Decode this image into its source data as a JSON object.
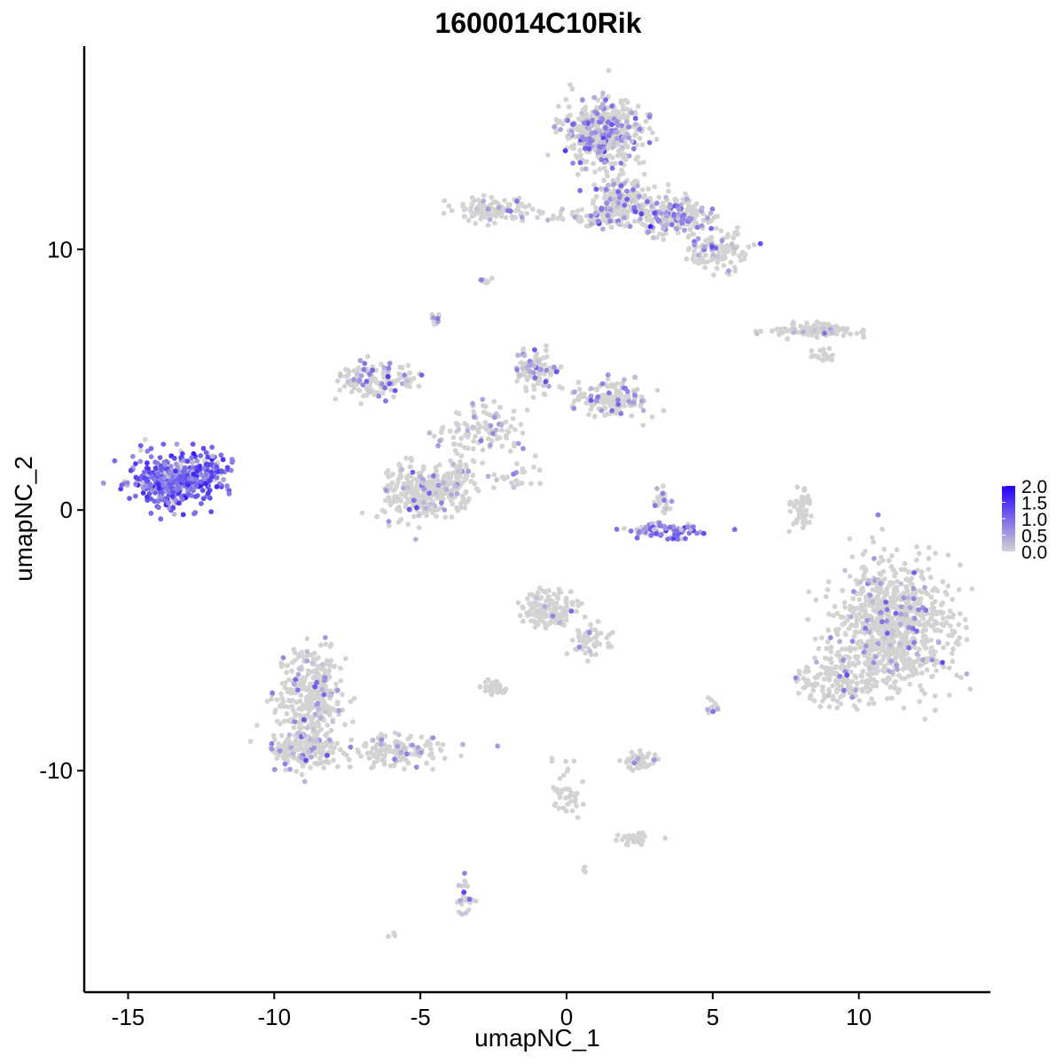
{
  "chart_data": {
    "type": "scatter",
    "title": "1600014C10Rik",
    "xlabel": "umapNC_1",
    "ylabel": "umapNC_2",
    "xlim": [
      -16.5,
      14.5
    ],
    "ylim": [
      -18.5,
      17.8
    ],
    "x_ticks": [
      -15,
      -10,
      -5,
      0,
      5,
      10
    ],
    "x_tick_labels": [
      "-15",
      "-10",
      "-5",
      "0",
      "5",
      "10"
    ],
    "y_ticks": [
      -10,
      0,
      10
    ],
    "y_tick_labels": [
      "-10",
      "0",
      "10"
    ],
    "grid": false,
    "legend_position": "right",
    "color_scale": {
      "low_color": "#d3d3d3",
      "high_color": "#2200ff",
      "min": 0.0,
      "max": 2.0,
      "breaks": [
        0.0,
        0.5,
        1.0,
        1.5,
        2.0
      ],
      "break_labels": [
        "0.0",
        "0.5",
        "1.0",
        "1.5",
        "2.0"
      ]
    },
    "clusters": [
      {
        "center": [
          -13.5,
          1.1
        ],
        "spread": [
          1.2,
          0.8
        ],
        "n": 420,
        "expr_frac": 0.9,
        "expr_mean": 1.0
      },
      {
        "center": [
          -12.1,
          1.6
        ],
        "spread": [
          0.6,
          0.6
        ],
        "n": 60,
        "expr_frac": 0.85,
        "expr_mean": 1.0
      },
      {
        "center": [
          1.2,
          14.5
        ],
        "spread": [
          1.1,
          1.1
        ],
        "n": 480,
        "expr_frac": 0.28,
        "expr_mean": 0.6
      },
      {
        "center": [
          1.9,
          11.8
        ],
        "spread": [
          0.8,
          0.8
        ],
        "n": 200,
        "expr_frac": 0.22,
        "expr_mean": 0.6
      },
      {
        "center": [
          3.7,
          11.3
        ],
        "spread": [
          0.9,
          0.6
        ],
        "n": 200,
        "expr_frac": 0.3,
        "expr_mean": 0.7
      },
      {
        "center": [
          5.2,
          10.0
        ],
        "spread": [
          0.8,
          0.6
        ],
        "n": 120,
        "expr_frac": 0.2,
        "expr_mean": 0.6
      },
      {
        "center": [
          -2.5,
          11.5
        ],
        "spread": [
          1.2,
          0.4
        ],
        "n": 110,
        "expr_frac": 0.1,
        "expr_mean": 0.5
      },
      {
        "center": [
          0.8,
          11.2
        ],
        "spread": [
          0.9,
          0.3
        ],
        "n": 60,
        "expr_frac": 0.08,
        "expr_mean": 0.4
      },
      {
        "center": [
          -2.8,
          8.8
        ],
        "spread": [
          0.15,
          0.12
        ],
        "n": 10,
        "expr_frac": 0.4,
        "expr_mean": 0.5
      },
      {
        "center": [
          -4.5,
          7.3
        ],
        "spread": [
          0.15,
          0.3
        ],
        "n": 12,
        "expr_frac": 0.3,
        "expr_mean": 0.5
      },
      {
        "center": [
          8.5,
          6.9
        ],
        "spread": [
          1.2,
          0.2
        ],
        "n": 140,
        "expr_frac": 0.06,
        "expr_mean": 0.4
      },
      {
        "center": [
          8.8,
          6.0
        ],
        "spread": [
          0.4,
          0.3
        ],
        "n": 20,
        "expr_frac": 0.0,
        "expr_mean": 0.3
      },
      {
        "center": [
          -6.5,
          5.0
        ],
        "spread": [
          1.0,
          0.6
        ],
        "n": 140,
        "expr_frac": 0.2,
        "expr_mean": 0.6
      },
      {
        "center": [
          -1.0,
          5.4
        ],
        "spread": [
          0.6,
          0.7
        ],
        "n": 100,
        "expr_frac": 0.25,
        "expr_mean": 0.6
      },
      {
        "center": [
          1.5,
          4.3
        ],
        "spread": [
          1.0,
          0.6
        ],
        "n": 160,
        "expr_frac": 0.15,
        "expr_mean": 0.5
      },
      {
        "center": [
          -3.0,
          3.0
        ],
        "spread": [
          1.2,
          0.9
        ],
        "n": 110,
        "expr_frac": 0.15,
        "expr_mean": 0.5
      },
      {
        "center": [
          -5.2,
          0.7
        ],
        "spread": [
          0.9,
          0.9
        ],
        "n": 220,
        "expr_frac": 0.12,
        "expr_mean": 0.5
      },
      {
        "center": [
          -3.9,
          1.0
        ],
        "spread": [
          0.6,
          0.8
        ],
        "n": 120,
        "expr_frac": 0.12,
        "expr_mean": 0.5
      },
      {
        "center": [
          -1.8,
          1.2
        ],
        "spread": [
          0.6,
          0.5
        ],
        "n": 25,
        "expr_frac": 0.2,
        "expr_mean": 0.5
      },
      {
        "center": [
          3.4,
          -0.8
        ],
        "spread": [
          1.1,
          0.25
        ],
        "n": 70,
        "expr_frac": 0.8,
        "expr_mean": 0.9
      },
      {
        "center": [
          3.3,
          0.3
        ],
        "spread": [
          0.3,
          0.5
        ],
        "n": 25,
        "expr_frac": 0.2,
        "expr_mean": 0.5
      },
      {
        "center": [
          8.0,
          0.0
        ],
        "spread": [
          0.3,
          0.8
        ],
        "n": 50,
        "expr_frac": 0.0,
        "expr_mean": 0.3
      },
      {
        "center": [
          11.2,
          -4.5
        ],
        "spread": [
          1.6,
          1.9
        ],
        "n": 900,
        "expr_frac": 0.08,
        "expr_mean": 0.6
      },
      {
        "center": [
          9.2,
          -6.5
        ],
        "spread": [
          1.0,
          0.8
        ],
        "n": 150,
        "expr_frac": 0.05,
        "expr_mean": 0.5
      },
      {
        "center": [
          -0.6,
          -3.8
        ],
        "spread": [
          0.7,
          0.6
        ],
        "n": 150,
        "expr_frac": 0.06,
        "expr_mean": 0.4
      },
      {
        "center": [
          0.8,
          -5.0
        ],
        "spread": [
          0.6,
          0.5
        ],
        "n": 50,
        "expr_frac": 0.05,
        "expr_mean": 0.4
      },
      {
        "center": [
          -2.5,
          -6.8
        ],
        "spread": [
          0.4,
          0.2
        ],
        "n": 40,
        "expr_frac": 0.0,
        "expr_mean": 0.3
      },
      {
        "center": [
          -8.8,
          -7.0
        ],
        "spread": [
          0.9,
          1.4
        ],
        "n": 330,
        "expr_frac": 0.1,
        "expr_mean": 0.5
      },
      {
        "center": [
          -9.0,
          -9.2
        ],
        "spread": [
          1.0,
          0.6
        ],
        "n": 200,
        "expr_frac": 0.12,
        "expr_mean": 0.5
      },
      {
        "center": [
          -5.8,
          -9.3
        ],
        "spread": [
          1.5,
          0.5
        ],
        "n": 130,
        "expr_frac": 0.15,
        "expr_mean": 0.5
      },
      {
        "center": [
          2.5,
          -9.6
        ],
        "spread": [
          0.5,
          0.3
        ],
        "n": 45,
        "expr_frac": 0.15,
        "expr_mean": 0.5
      },
      {
        "center": [
          2.3,
          -12.6
        ],
        "spread": [
          0.5,
          0.2
        ],
        "n": 30,
        "expr_frac": 0.0,
        "expr_mean": 0.3
      },
      {
        "center": [
          0.0,
          -10.8
        ],
        "spread": [
          0.4,
          1.0
        ],
        "n": 40,
        "expr_frac": 0.0,
        "expr_mean": 0.3
      },
      {
        "center": [
          -3.5,
          -14.8
        ],
        "spread": [
          0.2,
          0.6
        ],
        "n": 25,
        "expr_frac": 0.2,
        "expr_mean": 0.5
      },
      {
        "center": [
          5.0,
          -7.5
        ],
        "spread": [
          0.2,
          0.3
        ],
        "n": 12,
        "expr_frac": 0.3,
        "expr_mean": 0.5
      },
      {
        "center": [
          -6.0,
          -16.3
        ],
        "spread": [
          0.1,
          0.1
        ],
        "n": 4,
        "expr_frac": 0.0,
        "expr_mean": 0.3
      },
      {
        "center": [
          0.6,
          -13.8
        ],
        "spread": [
          0.1,
          0.1
        ],
        "n": 3,
        "expr_frac": 0.0,
        "expr_mean": 0.3
      }
    ]
  }
}
